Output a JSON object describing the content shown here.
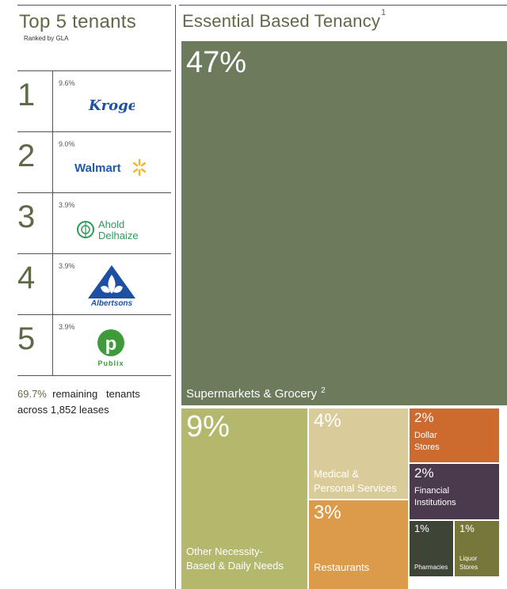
{
  "left": {
    "title": "Top 5 tenants",
    "subtitle": "Ranked by GLA",
    "tenants": [
      {
        "rank": "1",
        "share": "9.6%",
        "name": "Kroger",
        "logo_icon": "kroger-logo-icon"
      },
      {
        "rank": "2",
        "share": "9.0%",
        "name": "Walmart",
        "logo_icon": "walmart-logo-icon"
      },
      {
        "rank": "3",
        "share": "3.9%",
        "name_line1": "Ahold",
        "name_line2": "Delhaize",
        "logo_icon": "ahold-delhaize-logo-icon"
      },
      {
        "rank": "4",
        "share": "3.9%",
        "name": "Albertsons",
        "logo_icon": "albertsons-logo-icon"
      },
      {
        "rank": "5",
        "share": "3.9%",
        "name": "Publix",
        "logo_icon": "publix-logo-icon"
      }
    ],
    "remaining_pct": "69.7%",
    "remaining_text1": "remaining",
    "remaining_text2": "tenants",
    "remaining_text3": "across 1,852 leases"
  },
  "chart_data": {
    "type": "treemap",
    "title": "Essential Based Tenancy",
    "title_footnote": "1",
    "categories": [
      {
        "label": "Supermarkets & Grocery",
        "footnote": "2",
        "value": 47,
        "value_label": "47%",
        "color": "#6b7b5c"
      },
      {
        "label": "Other Necessity-Based & Daily Needs",
        "label_line1": "Other Necessity-",
        "label_line2": "Based & Daily Needs",
        "value": 9,
        "value_label": "9%",
        "color": "#b3b86c"
      },
      {
        "label": "Medical & Personal Services",
        "label_line1": "Medical &",
        "label_line2": "Personal Services",
        "value": 4,
        "value_label": "4%",
        "color": "#d9cc9a"
      },
      {
        "label": "Restaurants",
        "value": 3,
        "value_label": "3%",
        "color": "#dc9b4b"
      },
      {
        "label": "Dollar Stores",
        "label_line1": "Dollar",
        "label_line2": "Stores",
        "value": 2,
        "value_label": "2%",
        "color": "#cd6a2e"
      },
      {
        "label": "Financial Institutions",
        "label_line1": "Financial",
        "label_line2": "Institutions",
        "value": 2,
        "value_label": "2%",
        "color": "#4b3a4d"
      },
      {
        "label": "Pharmacies",
        "value": 1,
        "value_label": "1%",
        "color": "#3e4436"
      },
      {
        "label": "Liquor Stores",
        "label_line1": "Liquor",
        "label_line2": "Stores",
        "value": 1,
        "value_label": "1%",
        "color": "#77773c"
      }
    ]
  }
}
